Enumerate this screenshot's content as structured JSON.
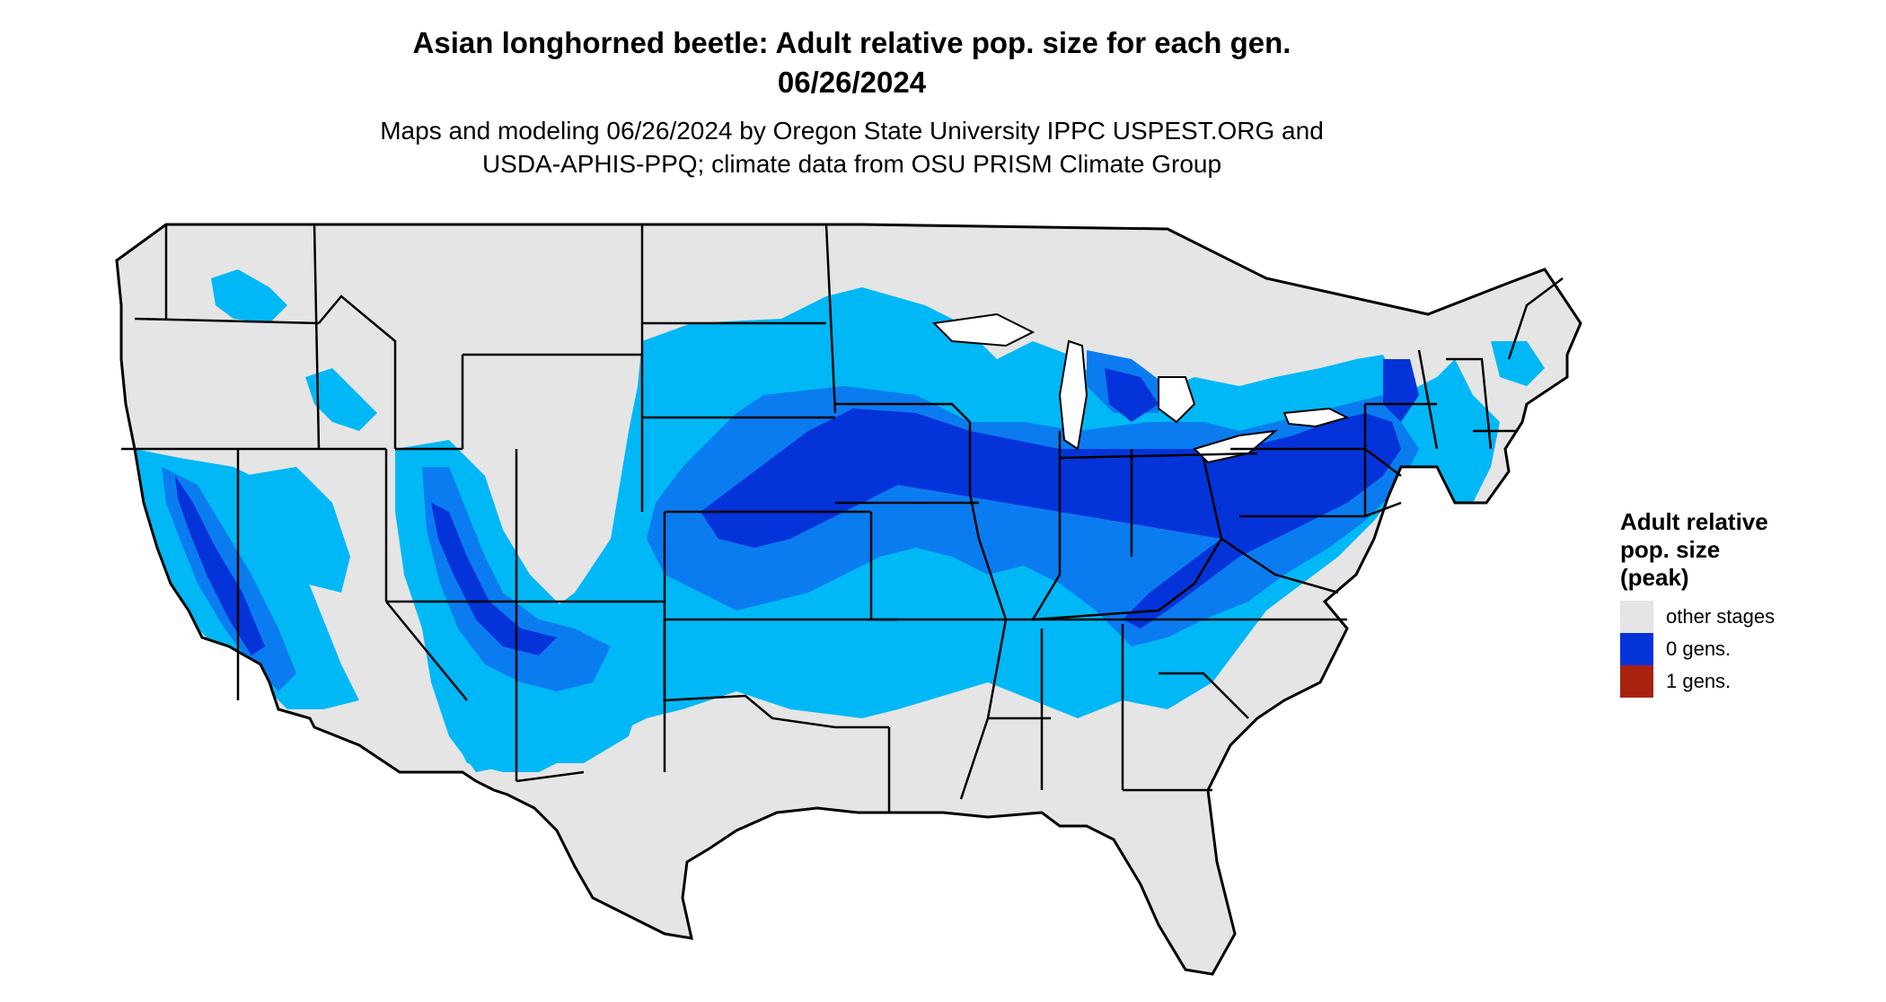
{
  "title_line1": "Asian longhorned beetle: Adult relative pop. size for each gen.",
  "title_line2": "06/26/2024",
  "subtitle_line1": "Maps and modeling 06/26/2024 by Oregon State University IPPC USPEST.ORG and",
  "subtitle_line2": "USDA-APHIS-PPQ; climate data from OSU PRISM Climate Group",
  "legend": {
    "title_line1": "Adult relative",
    "title_line2": "pop. size",
    "title_line3": "(peak)",
    "items": [
      {
        "label": "other stages",
        "color": "#e5e5e5"
      },
      {
        "label": "0 gens.",
        "color": "#0433d9"
      },
      {
        "label": "1 gens.",
        "color": "#a8220f"
      }
    ]
  },
  "colors": {
    "other_stages": "#e5e5e5",
    "light_blue": "#00b8f6",
    "medium_blue": "#0a7cf0",
    "deep_blue": "#0433d9",
    "border": "#000000"
  }
}
